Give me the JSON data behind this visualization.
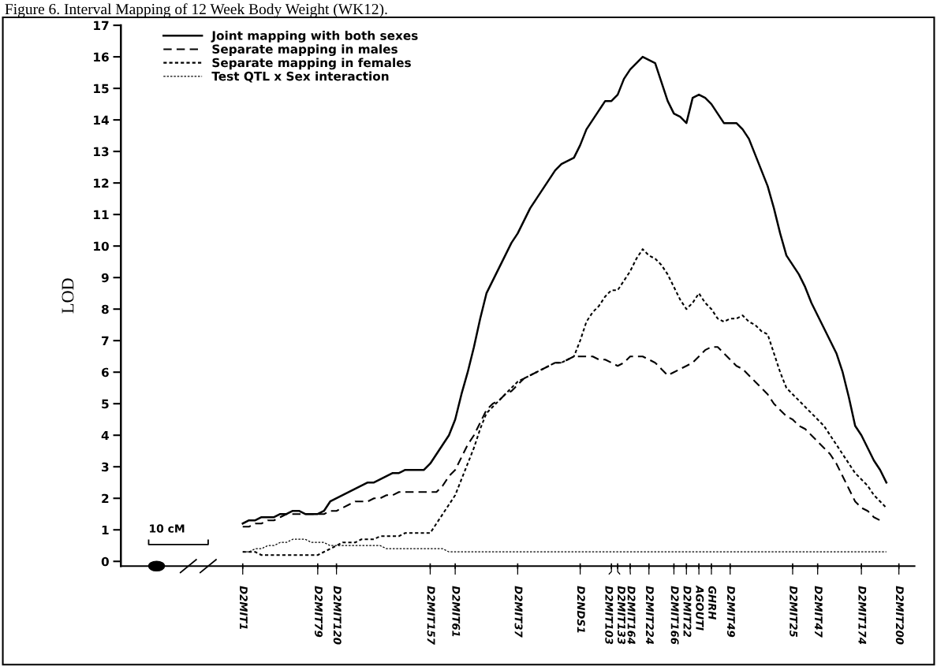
{
  "chart_data": {
    "type": "line",
    "title": "Figure 6. Interval Mapping of 12 Week Body Weight (WK12).",
    "ylabel": "LOD",
    "ylim": [
      -0.15,
      17
    ],
    "yticks": [
      0,
      1,
      2,
      3,
      4,
      5,
      6,
      7,
      8,
      9,
      10,
      11,
      12,
      13,
      14,
      15,
      16,
      17
    ],
    "categories": [
      null,
      null,
      null,
      null,
      null,
      null,
      null,
      null,
      null,
      null,
      null,
      null,
      null,
      null,
      null,
      null,
      null,
      null,
      null,
      "D2MIT1",
      null,
      null,
      null,
      null,
      null,
      null,
      null,
      null,
      null,
      null,
      null,
      "D2MIT79",
      null,
      null,
      "D2MIT120",
      null,
      null,
      null,
      null,
      null,
      null,
      null,
      null,
      null,
      null,
      null,
      null,
      null,
      null,
      "D2MIT157",
      null,
      null,
      null,
      "D2MIT61",
      null,
      null,
      null,
      null,
      null,
      null,
      null,
      null,
      null,
      "D2MIT37",
      null,
      null,
      null,
      null,
      null,
      null,
      null,
      null,
      null,
      "D2NDS1",
      null,
      null,
      null,
      null,
      "D2MIT103",
      "D2MIT133",
      null,
      "D2MIT164",
      null,
      null,
      "D2MIT224",
      null,
      null,
      null,
      "D2MIT166",
      null,
      "D2MIT22",
      null,
      "AGOUTI",
      null,
      "GHRH",
      null,
      null,
      "D2MIT49",
      null,
      null,
      null,
      null,
      null,
      null,
      null,
      null,
      null,
      "D2MIT25",
      null,
      null,
      null,
      "D2MIT47",
      null,
      null,
      null,
      null,
      null,
      null,
      "D2MIT174",
      null,
      null,
      null,
      null,
      null,
      "D2MIT200",
      null,
      null
    ],
    "grid": false,
    "legend": "top left",
    "marker": "none",
    "annotations": [
      "10 cM"
    ],
    "series": [
      {
        "name": "Joint mapping with both sexes",
        "color": "#000000",
        "line_style": "solid",
        "values": [
          null,
          null,
          null,
          null,
          null,
          null,
          null,
          null,
          null,
          null,
          null,
          null,
          null,
          null,
          null,
          null,
          null,
          null,
          null,
          1.2,
          1.3,
          1.3,
          1.4,
          1.4,
          1.4,
          1.5,
          1.5,
          1.6,
          1.6,
          1.5,
          1.5,
          1.5,
          1.6,
          1.9,
          2,
          2.1,
          2.2,
          2.3,
          2.4,
          2.5,
          2.5,
          2.6,
          2.7,
          2.8,
          2.8,
          2.9,
          2.9,
          2.9,
          2.9,
          3.1,
          3.4,
          3.7,
          4,
          4.5,
          5.3,
          6,
          6.8,
          7.7,
          8.5,
          8.9,
          9.3,
          9.7,
          10.1,
          10.4,
          10.8,
          11.2,
          11.5,
          11.8,
          12.1,
          12.4,
          12.6,
          12.7,
          12.8,
          13.2,
          13.7,
          14,
          14.3,
          14.6,
          14.6,
          14.8,
          15.3,
          15.6,
          15.8,
          16,
          15.9,
          15.8,
          15.2,
          14.6,
          14.2,
          14.1,
          13.9,
          14.7,
          14.8,
          14.7,
          14.5,
          14.2,
          13.9,
          13.9,
          13.9,
          13.7,
          13.4,
          12.9,
          12.4,
          11.9,
          11.2,
          10.4,
          9.7,
          9.4,
          9.1,
          8.7,
          8.2,
          7.8,
          7.4,
          7,
          6.6,
          6,
          5.2,
          4.3,
          4,
          3.6,
          3.2,
          2.9,
          2.5,
          null,
          null,
          null,
          null
        ]
      },
      {
        "name": "Separate mapping in males",
        "color": "#000000",
        "line_style": "dashed",
        "values": [
          null,
          null,
          null,
          null,
          null,
          null,
          null,
          null,
          null,
          null,
          null,
          null,
          null,
          null,
          null,
          null,
          null,
          null,
          null,
          1.1,
          1.1,
          1.2,
          1.2,
          1.3,
          1.3,
          1.4,
          1.5,
          1.5,
          1.5,
          1.5,
          1.5,
          1.5,
          1.5,
          1.6,
          1.6,
          1.7,
          1.8,
          1.9,
          1.9,
          1.9,
          2,
          2,
          2.1,
          2.1,
          2.2,
          2.2,
          2.2,
          2.2,
          2.2,
          2.2,
          2.2,
          2.4,
          2.7,
          2.9,
          3.3,
          3.7,
          4,
          4.4,
          4.8,
          5,
          5.1,
          5.3,
          5.4,
          5.6,
          5.8,
          5.9,
          6,
          6.1,
          6.2,
          6.3,
          6.3,
          6.4,
          6.5,
          6.5,
          6.5,
          6.5,
          6.4,
          6.4,
          6.3,
          6.2,
          6.3,
          6.5,
          6.5,
          6.5,
          6.4,
          6.3,
          6.1,
          5.9,
          6,
          6.1,
          6.2,
          6.3,
          6.5,
          6.7,
          6.8,
          6.8,
          6.6,
          6.4,
          6.2,
          6.1,
          5.9,
          5.7,
          5.5,
          5.3,
          5,
          4.8,
          4.6,
          4.5,
          4.3,
          4.2,
          4,
          3.8,
          3.6,
          3.4,
          3.1,
          2.7,
          2.3,
          1.9,
          1.7,
          1.6,
          1.4,
          1.3,
          null,
          null,
          null,
          null,
          null
        ]
      },
      {
        "name": "Separate mapping in females",
        "color": "#000000",
        "line_style": "dotted",
        "values": [
          null,
          null,
          null,
          null,
          null,
          null,
          null,
          null,
          null,
          null,
          null,
          null,
          null,
          null,
          null,
          null,
          null,
          null,
          null,
          0.3,
          0.3,
          0.3,
          0.2,
          0.2,
          0.2,
          0.2,
          0.2,
          0.2,
          0.2,
          0.2,
          0.2,
          0.2,
          0.3,
          0.4,
          0.5,
          0.6,
          0.6,
          0.6,
          0.7,
          0.7,
          0.7,
          0.8,
          0.8,
          0.8,
          0.8,
          0.9,
          0.9,
          0.9,
          0.9,
          0.9,
          1.2,
          1.5,
          1.8,
          2.1,
          2.6,
          3.1,
          3.6,
          4.2,
          4.7,
          4.9,
          5.1,
          5.3,
          5.5,
          5.7,
          5.8,
          5.9,
          6,
          6.1,
          6.2,
          6.3,
          6.3,
          6.4,
          6.5,
          7,
          7.6,
          7.9,
          8.1,
          8.4,
          8.6,
          8.6,
          8.9,
          9.2,
          9.6,
          9.9,
          9.7,
          9.6,
          9.4,
          9.1,
          8.7,
          8.3,
          8,
          8.2,
          8.5,
          8.2,
          8,
          7.7,
          7.6,
          7.7,
          7.7,
          7.8,
          7.6,
          7.5,
          7.3,
          7.2,
          6.6,
          6,
          5.5,
          5.3,
          5.1,
          4.9,
          4.7,
          4.5,
          4.3,
          4,
          3.7,
          3.4,
          3.1,
          2.8,
          2.6,
          2.4,
          2.1,
          1.9,
          1.7,
          null,
          null,
          null,
          null
        ]
      },
      {
        "name": "Test QTL x Sex interaction",
        "color": "#000000",
        "line_style": "dotted",
        "values": [
          null,
          null,
          null,
          null,
          null,
          null,
          null,
          null,
          null,
          null,
          null,
          null,
          null,
          null,
          null,
          null,
          null,
          null,
          null,
          0.3,
          0.3,
          0.4,
          0.4,
          0.5,
          0.5,
          0.6,
          0.6,
          0.7,
          0.7,
          0.7,
          0.6,
          0.6,
          0.6,
          0.5,
          0.5,
          0.5,
          0.5,
          0.5,
          0.5,
          0.5,
          0.5,
          0.5,
          0.4,
          0.4,
          0.4,
          0.4,
          0.4,
          0.4,
          0.4,
          0.4,
          0.4,
          0.4,
          0.3,
          0.3,
          0.3,
          0.3,
          0.3,
          0.3,
          0.3,
          0.3,
          0.3,
          0.3,
          0.3,
          0.3,
          0.3,
          0.3,
          0.3,
          0.3,
          0.3,
          0.3,
          0.3,
          0.3,
          0.3,
          0.3,
          0.3,
          0.3,
          0.3,
          0.3,
          0.3,
          0.3,
          0.3,
          0.3,
          0.3,
          0.3,
          0.3,
          0.3,
          0.3,
          0.3,
          0.3,
          0.3,
          0.3,
          0.3,
          0.3,
          0.3,
          0.3,
          0.3,
          0.3,
          0.3,
          0.3,
          0.3,
          0.3,
          0.3,
          0.3,
          0.3,
          0.3,
          0.3,
          0.3,
          0.3,
          0.3,
          0.3,
          0.3,
          0.3,
          0.3,
          0.3,
          0.3,
          0.3,
          0.3,
          0.3,
          0.3,
          0.3,
          0.3,
          0.3,
          0.3,
          null,
          null,
          null,
          null
        ]
      }
    ]
  }
}
